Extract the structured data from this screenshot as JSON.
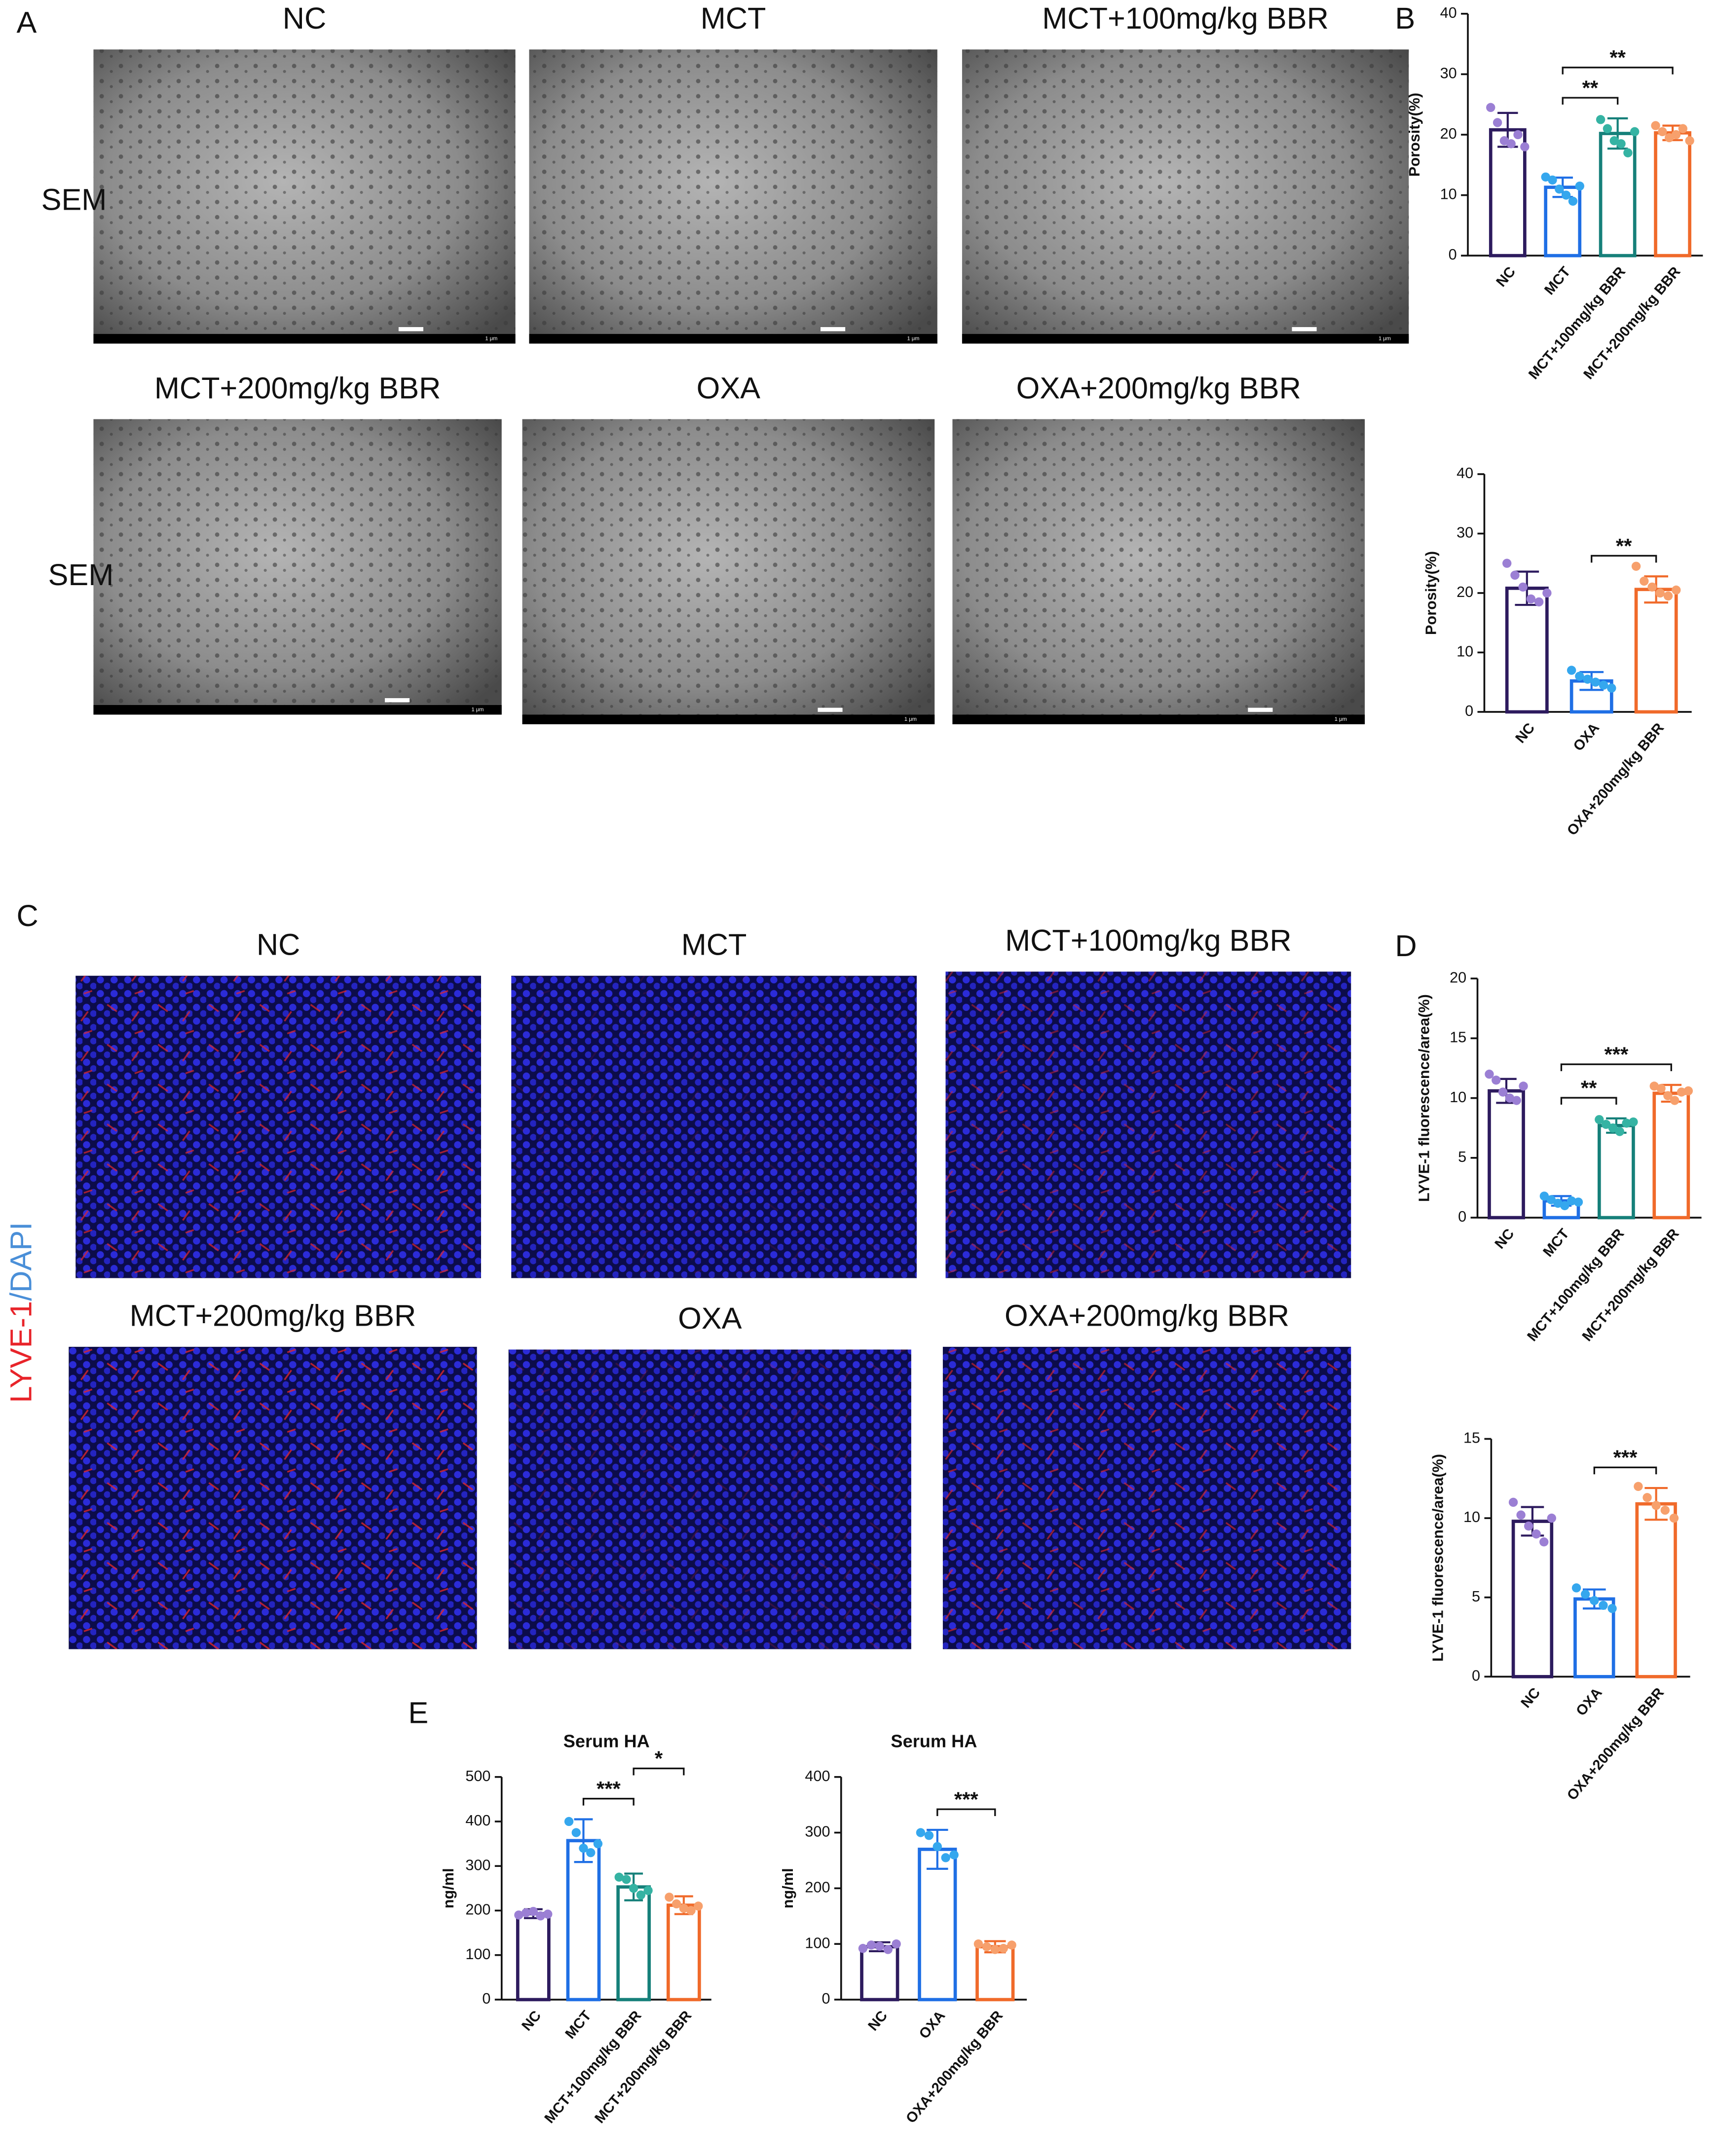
{
  "panels": [
    "A",
    "B",
    "C",
    "D",
    "E"
  ],
  "sem": {
    "row_label": "SEM",
    "scale_label": "1 μm",
    "titles": [
      "NC",
      "MCT",
      "MCT+100mg/kg BBR",
      "MCT+200mg/kg BBR",
      "OXA",
      "OXA+200mg/kg BBR"
    ]
  },
  "fluorescence": {
    "row_label": [
      "LYVE-1",
      "/DAPI"
    ],
    "row_label_colors": [
      "#e8242a",
      "#4a8fd8"
    ],
    "titles": [
      "NC",
      "MCT",
      "MCT+100mg/kg BBR",
      "MCT+200mg/kg BBR",
      "OXA",
      "OXA+200mg/kg BBR"
    ]
  },
  "chart_data": [
    {
      "type": "bar",
      "ylabel": "Porosity(%)",
      "categories": [
        "NC",
        "MCT",
        "MCT+100mg/kg BBR",
        "MCT+200mg/kg BBR"
      ],
      "values": [
        20.8,
        11.3,
        20.2,
        20.3
      ],
      "errors": [
        2.8,
        1.6,
        2.5,
        1.2
      ],
      "points": [
        [
          24.5,
          22,
          19,
          18.5,
          20,
          18
        ],
        [
          13,
          12.5,
          11,
          10,
          9,
          11.5
        ],
        [
          22.5,
          21,
          19,
          18.5,
          17,
          20.5
        ],
        [
          21.5,
          20.5,
          19.5,
          20,
          21,
          19
        ]
      ],
      "colors": [
        "#2d1b5e",
        "#1f6fe5",
        "#16807a",
        "#f06a2a"
      ],
      "point_colors": [
        "#9b7fd4",
        "#35a7ee",
        "#35b3a3",
        "#f7a06c"
      ],
      "ylim": [
        0,
        40
      ],
      "yticks": [
        0,
        10,
        20,
        30,
        40
      ],
      "significance": [
        {
          "pair": [
            1,
            2
          ],
          "label": "**"
        },
        {
          "pair": [
            1,
            3
          ],
          "label": "**"
        }
      ]
    },
    {
      "type": "bar",
      "ylabel": "Porosity(%)",
      "categories": [
        "NC",
        "OXA",
        "OXA+200mg/kg BBR"
      ],
      "values": [
        20.8,
        5.2,
        20.6
      ],
      "errors": [
        2.8,
        1.5,
        2.2
      ],
      "points": [
        [
          25,
          23,
          21,
          19,
          18.5,
          20
        ],
        [
          7,
          6,
          5.5,
          5,
          4.5,
          4
        ],
        [
          24.5,
          22,
          21,
          20,
          19.5,
          20.5
        ]
      ],
      "colors": [
        "#2d1b5e",
        "#1f6fe5",
        "#f06a2a"
      ],
      "point_colors": [
        "#9b7fd4",
        "#35a7ee",
        "#f7a06c"
      ],
      "ylim": [
        0,
        40
      ],
      "yticks": [
        0,
        10,
        20,
        30,
        40
      ],
      "significance": [
        {
          "pair": [
            1,
            2
          ],
          "label": "**"
        }
      ]
    },
    {
      "type": "bar",
      "ylabel": "LYVE-1 fluorescence/area(%)",
      "categories": [
        "NC",
        "MCT",
        "MCT+100mg/kg BBR",
        "MCT+200mg/kg BBR"
      ],
      "values": [
        10.6,
        1.4,
        7.7,
        10.4
      ],
      "errors": [
        1.0,
        0.4,
        0.6,
        0.7
      ],
      "points": [
        [
          12,
          11.5,
          10.5,
          10,
          9.8,
          11
        ],
        [
          1.8,
          1.5,
          1.2,
          1.0,
          1.4,
          1.3
        ],
        [
          8.2,
          7.8,
          7.5,
          7.2,
          7.9,
          8
        ],
        [
          11,
          10.8,
          10.2,
          9.8,
          10.5,
          10.6
        ]
      ],
      "colors": [
        "#2d1b5e",
        "#1f6fe5",
        "#16807a",
        "#f06a2a"
      ],
      "point_colors": [
        "#9b7fd4",
        "#35a7ee",
        "#35b3a3",
        "#f7a06c"
      ],
      "ylim": [
        0,
        20
      ],
      "yticks": [
        0,
        5,
        10,
        15,
        20
      ],
      "significance": [
        {
          "pair": [
            1,
            2
          ],
          "label": "**"
        },
        {
          "pair": [
            1,
            3
          ],
          "label": "***"
        }
      ]
    },
    {
      "type": "bar",
      "ylabel": "LYVE-1 fluorescence/area(%)",
      "categories": [
        "NC",
        "OXA",
        "OXA+200mg/kg BBR"
      ],
      "values": [
        9.8,
        4.9,
        10.9
      ],
      "errors": [
        0.9,
        0.6,
        1.0
      ],
      "points": [
        [
          11,
          10.2,
          9.5,
          9,
          8.5,
          10
        ],
        [
          5.6,
          5.2,
          4.8,
          4.5,
          4.3
        ],
        [
          12,
          11.3,
          10.8,
          10.5,
          10
        ]
      ],
      "colors": [
        "#2d1b5e",
        "#1f6fe5",
        "#f06a2a"
      ],
      "point_colors": [
        "#9b7fd4",
        "#35a7ee",
        "#f7a06c"
      ],
      "ylim": [
        0,
        15
      ],
      "yticks": [
        0,
        5,
        10,
        15
      ],
      "significance": [
        {
          "pair": [
            1,
            2
          ],
          "label": "***"
        }
      ]
    },
    {
      "type": "bar",
      "title": "Serum HA",
      "ylabel": "ng/ml",
      "categories": [
        "NC",
        "MCT",
        "MCT+100mg/kg BBR",
        "MCT+200mg/kg BBR"
      ],
      "values": [
        193,
        357,
        253,
        212
      ],
      "errors": [
        10,
        48,
        30,
        20
      ],
      "points": [
        [
          190,
          195,
          198,
          188,
          192
        ],
        [
          400,
          375,
          340,
          330,
          350
        ],
        [
          275,
          270,
          250,
          235,
          245
        ],
        [
          230,
          215,
          205,
          200,
          210
        ]
      ],
      "colors": [
        "#2d1b5e",
        "#1f6fe5",
        "#16807a",
        "#f06a2a"
      ],
      "point_colors": [
        "#9b7fd4",
        "#35a7ee",
        "#35b3a3",
        "#f7a06c"
      ],
      "ylim": [
        0,
        500
      ],
      "yticks": [
        0,
        100,
        200,
        300,
        400,
        500
      ],
      "significance": [
        {
          "pair": [
            1,
            2
          ],
          "label": "***"
        },
        {
          "pair": [
            2,
            3
          ],
          "label": "*"
        }
      ]
    },
    {
      "type": "bar",
      "title": "Serum HA",
      "ylabel": "ng/ml",
      "categories": [
        "NC",
        "OXA",
        "OXA+200mg/kg BBR"
      ],
      "values": [
        95,
        270,
        95
      ],
      "errors": [
        8,
        35,
        10
      ],
      "points": [
        [
          92,
          98,
          96,
          90,
          100
        ],
        [
          300,
          295,
          275,
          255,
          260
        ],
        [
          100,
          95,
          90,
          92,
          98
        ]
      ],
      "colors": [
        "#2d1b5e",
        "#1f6fe5",
        "#f06a2a"
      ],
      "point_colors": [
        "#9b7fd4",
        "#35a7ee",
        "#f7a06c"
      ],
      "ylim": [
        0,
        400
      ],
      "yticks": [
        0,
        100,
        200,
        300,
        400
      ],
      "significance": [
        {
          "pair": [
            1,
            2
          ],
          "label": "***"
        }
      ]
    }
  ]
}
